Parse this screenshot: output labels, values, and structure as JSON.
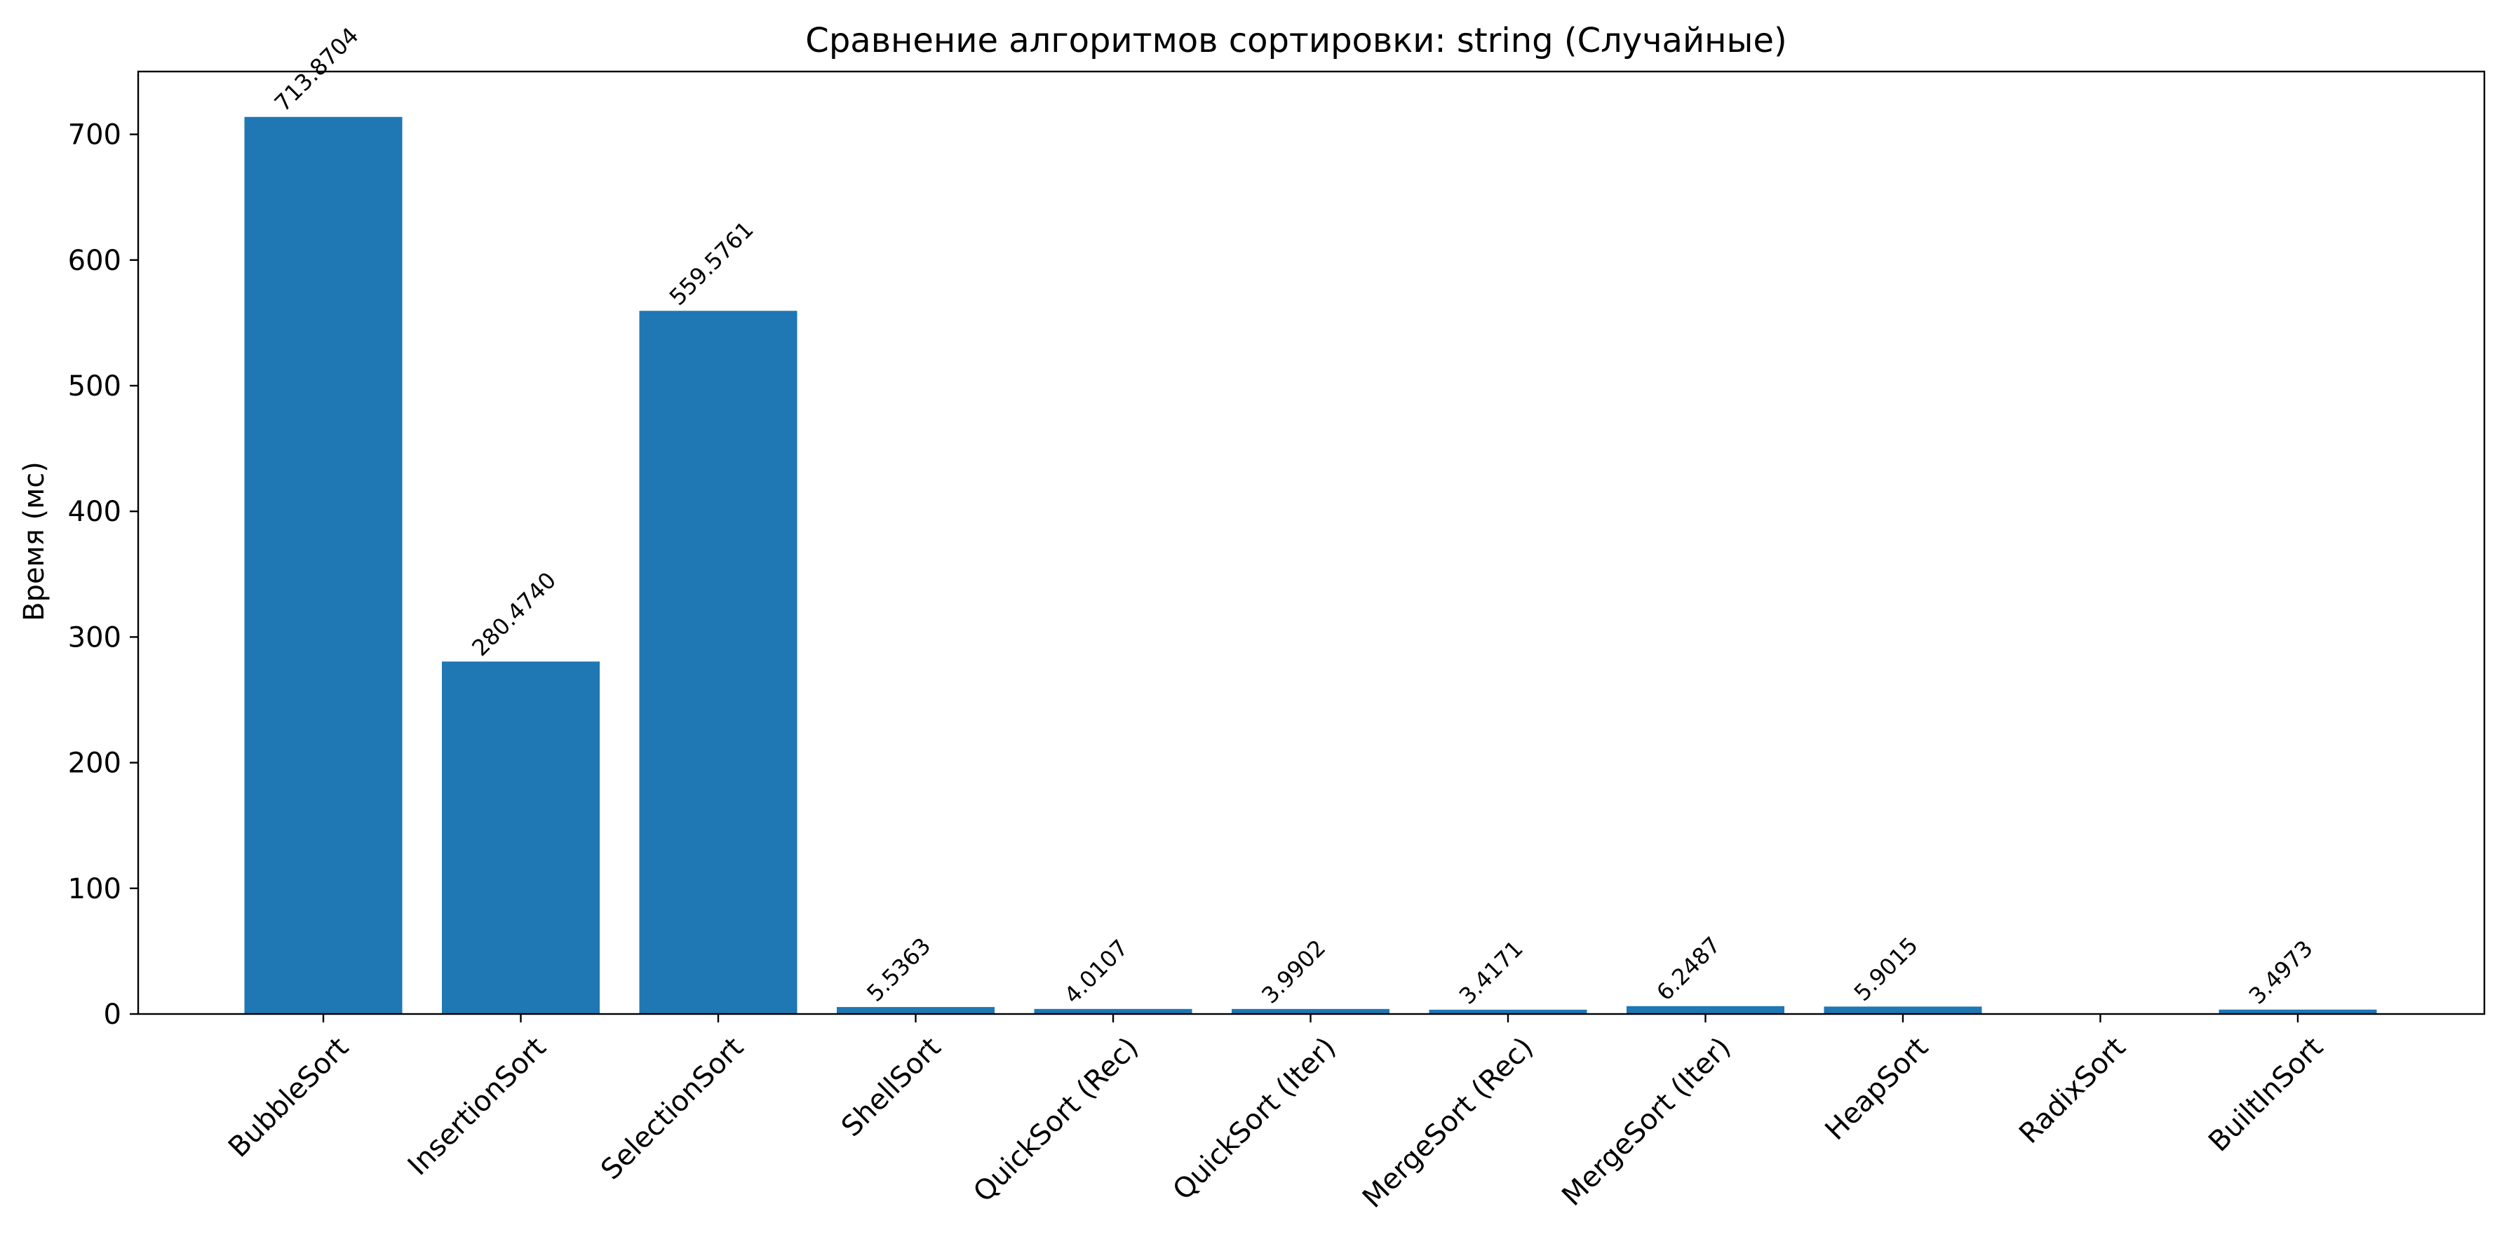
{
  "chart_data": {
    "type": "bar",
    "title": "Сравнение алгоритмов сортировки: string (Случайные)",
    "xlabel": "",
    "ylabel": "Время (мс)",
    "ylim": [
      0,
      750
    ],
    "yticks": [
      0,
      100,
      200,
      300,
      400,
      500,
      600,
      700
    ],
    "ytick_labels": [
      "0",
      "100",
      "200",
      "300",
      "400",
      "500",
      "600",
      "700"
    ],
    "grid": false,
    "bar_color": "#1f77b4",
    "categories": [
      "BubbleSort",
      "InsertionSort",
      "SelectionSort",
      "ShellSort",
      "QuickSort (Rec)",
      "QuickSort (Iter)",
      "MergeSort (Rec)",
      "MergeSort (Iter)",
      "HeapSort",
      "RadixSort",
      "BuiltInSort"
    ],
    "values": [
      713.8704,
      280.474,
      559.5761,
      5.5363,
      4.0107,
      3.9902,
      3.4171,
      6.2487,
      5.9015,
      null,
      3.4973
    ],
    "data_labels": [
      "713.8704",
      "280.4740",
      "559.5761",
      "5.5363",
      "4.0107",
      "3.9902",
      "3.4171",
      "6.2487",
      "5.9015",
      "",
      "3.4973"
    ]
  }
}
